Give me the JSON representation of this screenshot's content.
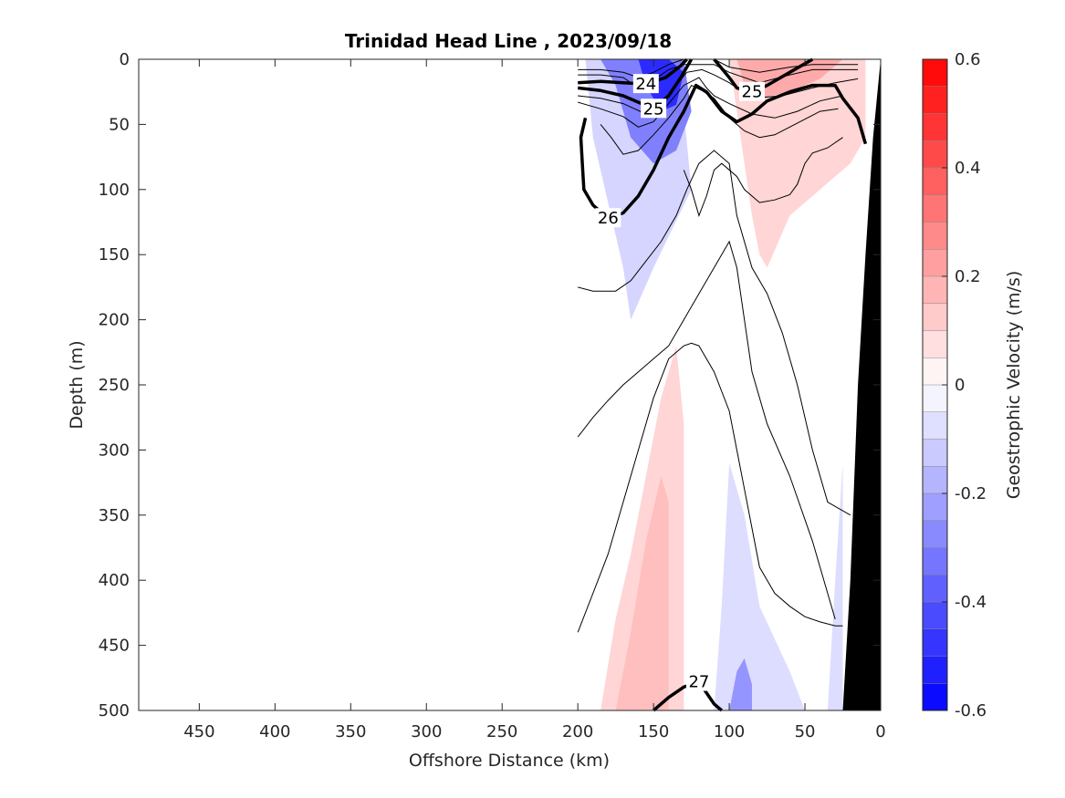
{
  "chart_data": {
    "type": "contour",
    "title": "Trinidad Head Line , 2023/09/18",
    "xlabel": "Offshore Distance (km)",
    "ylabel": "Depth (m)",
    "xlim": [
      490,
      0
    ],
    "ylim": [
      500,
      0
    ],
    "x_ticks": [
      450,
      400,
      350,
      300,
      250,
      200,
      150,
      100,
      50,
      0
    ],
    "y_ticks": [
      0,
      50,
      100,
      150,
      200,
      250,
      300,
      350,
      400,
      450,
      500
    ],
    "colorbar": {
      "label": "Geostrophic Velocity (m/s)",
      "range": [
        -0.6,
        0.6
      ],
      "ticks": [
        -0.6,
        -0.4,
        -0.2,
        0,
        0.2,
        0.4,
        0.6
      ],
      "negative_color": "#0000ff",
      "positive_color": "#ff0000"
    },
    "velocity_regions": [
      {
        "x": [
          195,
          190,
          180,
          170,
          165,
          150,
          125,
          130,
          150,
          175,
          200
        ],
        "y": [
          0,
          60,
          110,
          160,
          200,
          160,
          100,
          40,
          10,
          0,
          0
        ],
        "value": -0.1
      },
      {
        "x": [
          185,
          175,
          165,
          150,
          135,
          125,
          130,
          145,
          165,
          185
        ],
        "y": [
          0,
          20,
          60,
          80,
          70,
          40,
          0,
          0,
          0,
          0
        ],
        "value": -0.3
      },
      {
        "x": [
          160,
          155,
          145,
          135,
          130,
          140,
          150,
          160
        ],
        "y": [
          0,
          20,
          40,
          35,
          10,
          0,
          0,
          0
        ],
        "value": -0.5
      },
      {
        "x": [
          100,
          95,
          90,
          85,
          80,
          75,
          60,
          40,
          20,
          10,
          10,
          30,
          60,
          90,
          100
        ],
        "y": [
          0,
          40,
          80,
          120,
          150,
          160,
          120,
          100,
          80,
          60,
          0,
          0,
          0,
          0,
          0
        ],
        "value": 0.1
      },
      {
        "x": [
          95,
          90,
          80,
          60,
          40,
          25,
          30,
          50,
          70,
          95
        ],
        "y": [
          0,
          20,
          30,
          25,
          15,
          0,
          0,
          0,
          0,
          0
        ],
        "value": 0.2
      },
      {
        "x": [
          185,
          175,
          165,
          155,
          145,
          135,
          130,
          130,
          140,
          150,
          160,
          170,
          180,
          185
        ],
        "y": [
          500,
          430,
          380,
          320,
          260,
          220,
          280,
          500,
          500,
          500,
          500,
          500,
          500,
          500
        ],
        "value": 0.1
      },
      {
        "x": [
          175,
          165,
          155,
          145,
          140,
          140,
          155,
          170,
          175
        ],
        "y": [
          500,
          440,
          370,
          320,
          340,
          500,
          500,
          500,
          500
        ],
        "value": 0.15
      },
      {
        "x": [
          110,
          105,
          100,
          90,
          80,
          60,
          50,
          55,
          100,
          110
        ],
        "y": [
          500,
          420,
          310,
          350,
          420,
          470,
          500,
          500,
          500,
          500
        ],
        "value": -0.08
      },
      {
        "x": [
          100,
          95,
          90,
          85,
          85,
          100
        ],
        "y": [
          500,
          470,
          460,
          480,
          500,
          500
        ],
        "value": -0.25
      },
      {
        "x": [
          35,
          30,
          25,
          25,
          35
        ],
        "y": [
          500,
          400,
          310,
          500,
          500
        ],
        "value": -0.08
      }
    ],
    "density_contours": [
      {
        "level": 24,
        "x": [
          200,
          185,
          170,
          155,
          142,
          132,
          128
        ],
        "y": [
          18,
          17,
          18,
          19,
          14,
          5,
          0
        ],
        "labeled": true
      },
      {
        "level": 25,
        "x": [
          200,
          185,
          170,
          150,
          140,
          132,
          125
        ],
        "y": [
          22,
          24,
          28,
          38,
          28,
          14,
          0
        ],
        "labeled": true
      },
      {
        "level": 25,
        "x": [
          110,
          100,
          95,
          85,
          75,
          60,
          45
        ],
        "y": [
          0,
          14,
          22,
          25,
          20,
          10,
          0
        ],
        "labeled": true
      },
      {
        "level": 26,
        "x": [
          195,
          198,
          197,
          196,
          190,
          180,
          170,
          160,
          150,
          140,
          130,
          122,
          115,
          105,
          95,
          85,
          75,
          60,
          45,
          30,
          25,
          15,
          10
        ],
        "y": [
          45,
          60,
          80,
          100,
          112,
          122,
          118,
          105,
          85,
          60,
          40,
          20,
          25,
          40,
          48,
          42,
          32,
          25,
          20,
          20,
          30,
          45,
          65
        ],
        "labeled": true
      },
      {
        "level": 27,
        "x": [
          150,
          140,
          130,
          120,
          110,
          105
        ],
        "y": [
          500,
          490,
          482,
          478,
          495,
          500
        ],
        "labeled": true
      }
    ],
    "thin_contours": [
      {
        "x": [
          200,
          185,
          170,
          160,
          150,
          140,
          130,
          120,
          110,
          100,
          80,
          60,
          45,
          30,
          15
        ],
        "y": [
          8,
          8,
          10,
          14,
          10,
          4,
          0,
          0,
          0,
          6,
          10,
          6,
          4,
          4,
          4
        ]
      },
      {
        "x": [
          200,
          185,
          170,
          160,
          150,
          140,
          130,
          120,
          110,
          100,
          80,
          60,
          45,
          30,
          15
        ],
        "y": [
          12,
          12,
          14,
          22,
          16,
          8,
          4,
          4,
          4,
          10,
          18,
          12,
          8,
          8,
          8
        ]
      },
      {
        "x": [
          200,
          185,
          170,
          155,
          145,
          135,
          128,
          118,
          110,
          100,
          85,
          65,
          45,
          30,
          15
        ],
        "y": [
          28,
          30,
          34,
          42,
          35,
          20,
          10,
          8,
          12,
          18,
          30,
          28,
          22,
          18,
          15
        ]
      },
      {
        "x": [
          200,
          185,
          170,
          160,
          150,
          140,
          130,
          120,
          115,
          110,
          100,
          85,
          70,
          55,
          40,
          25
        ],
        "y": [
          33,
          38,
          44,
          52,
          48,
          34,
          20,
          14,
          22,
          28,
          34,
          42,
          45,
          40,
          32,
          28
        ]
      },
      {
        "x": [
          185,
          178,
          170,
          160,
          150,
          140,
          130,
          125,
          118,
          110,
          100,
          90,
          80,
          70,
          60,
          50,
          40,
          28
        ],
        "y": [
          50,
          60,
          73,
          70,
          58,
          45,
          30,
          20,
          24,
          30,
          45,
          55,
          60,
          58,
          52,
          46,
          40,
          38
        ]
      },
      {
        "x": [
          130,
          125,
          120,
          115,
          110,
          105,
          95,
          90,
          80,
          70,
          60,
          55,
          50,
          45,
          35,
          25
        ],
        "y": [
          85,
          100,
          120,
          105,
          85,
          80,
          90,
          100,
          110,
          108,
          104,
          96,
          80,
          72,
          68,
          60
        ]
      },
      {
        "x": [
          200,
          190,
          175,
          165,
          155,
          145,
          135,
          128,
          120,
          110,
          100,
          95,
          85,
          75,
          65,
          55,
          45,
          35,
          20
        ],
        "y": [
          175,
          178,
          178,
          170,
          155,
          140,
          120,
          100,
          80,
          70,
          80,
          120,
          160,
          180,
          210,
          250,
          300,
          340,
          350
        ]
      },
      {
        "x": [
          200,
          190,
          180,
          170,
          160,
          150,
          140,
          130,
          120,
          110,
          100,
          95,
          90,
          85,
          75,
          60,
          45,
          35,
          30
        ],
        "y": [
          290,
          275,
          262,
          250,
          240,
          230,
          220,
          200,
          180,
          160,
          140,
          160,
          200,
          240,
          280,
          320,
          370,
          410,
          430
        ]
      },
      {
        "x": [
          200,
          190,
          180,
          170,
          160,
          150,
          140,
          130,
          125,
          120,
          110,
          100,
          95,
          90,
          85,
          80,
          70,
          60,
          50,
          40,
          30,
          25
        ],
        "y": [
          440,
          410,
          380,
          340,
          300,
          260,
          230,
          220,
          218,
          220,
          240,
          270,
          300,
          330,
          360,
          390,
          410,
          420,
          428,
          432,
          435,
          435
        ]
      }
    ],
    "bathymetry": {
      "color": "#000000",
      "x": [
        0,
        5,
        10,
        15,
        20,
        25,
        0
      ],
      "y": [
        0,
        60,
        150,
        250,
        400,
        500,
        500
      ]
    }
  }
}
